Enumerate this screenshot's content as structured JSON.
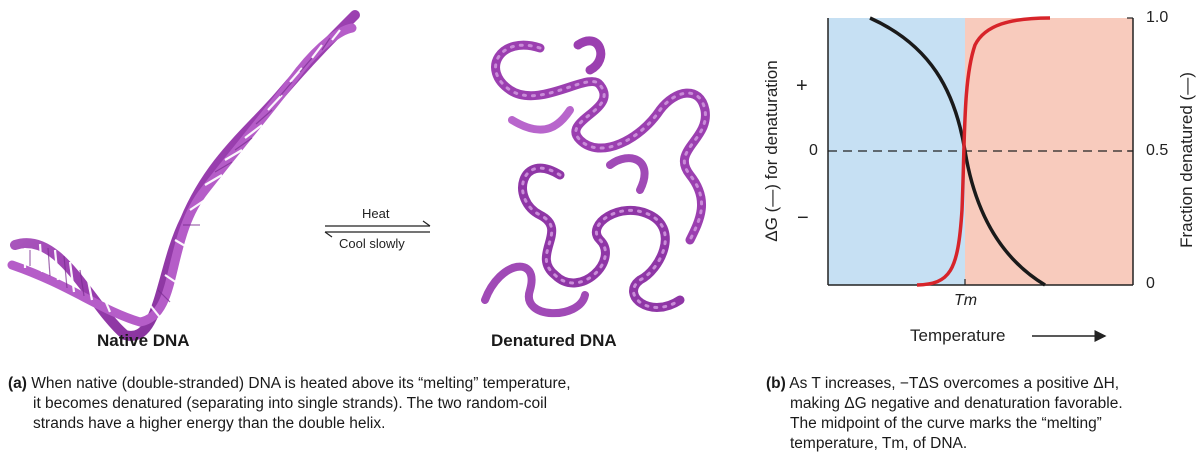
{
  "panel_a": {
    "native_label": "Native DNA",
    "denatured_label": "Denatured DNA",
    "forward_label": "Heat",
    "reverse_label": "Cool slowly",
    "caption_tag": "(a)",
    "caption_lines": [
      "When native (double-stranded) DNA is heated above its “melting” temperature,",
      "it becomes denatured (separating into single strands). The two random-coil",
      "strands have a higher energy than the double helix."
    ]
  },
  "panel_b": {
    "left_axis_label": "ΔG (—) for denaturation",
    "left_ticks": [
      "+",
      "0",
      "−"
    ],
    "right_axis_label": "Fraction denatured (—)",
    "right_ticks": [
      "1.0",
      "0.5",
      "0"
    ],
    "x_tick": "Tm",
    "x_label": "Temperature",
    "caption_tag": "(b)",
    "caption_lines": [
      "As T increases, −TΔS overcomes a positive ΔH,",
      "making ΔG negative and denaturation favorable.",
      "The midpoint of the curve marks the “melting”",
      "temperature, Tm, of DNA."
    ],
    "colors": {
      "cold_region": "#c6e0f3",
      "hot_region": "#f8cbbd",
      "delta_g_curve": "#1a1a1a",
      "fraction_curve": "#d7242a",
      "dna": "#9b3fb0"
    }
  }
}
